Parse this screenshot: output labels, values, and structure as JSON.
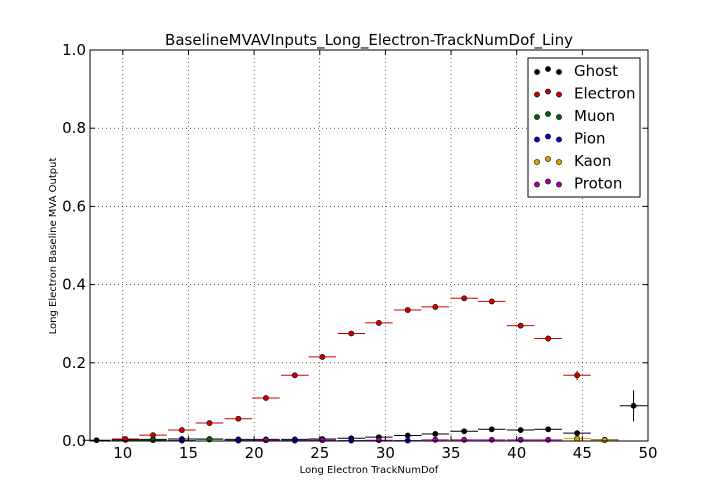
{
  "chart_data": {
    "type": "scatter",
    "title": "BaselineMVAVInputs_Long_Electron-TrackNumDof_Liny",
    "xlabel": "Long Electron TrackNumDof",
    "ylabel": "Long Electron Baseline MVA Output",
    "xlim": [
      7.5,
      50
    ],
    "ylim": [
      0,
      1.0
    ],
    "x_ticks": [
      "10",
      "15",
      "20",
      "25",
      "30",
      "35",
      "40",
      "45",
      "50"
    ],
    "y_ticks": [
      "0.0",
      "0.2",
      "0.4",
      "0.6",
      "0.8",
      "1.0"
    ],
    "grid": true,
    "legend_position": "top-right",
    "bin_half_width": 1.05,
    "series": [
      {
        "name": "Ghost",
        "color": "#000000",
        "points": [
          {
            "x": 8.0,
            "y": 0.002,
            "err": 0.001
          },
          {
            "x": 10.2,
            "y": 0.003,
            "err": 0.001
          },
          {
            "x": 12.3,
            "y": 0.004,
            "err": 0.001
          },
          {
            "x": 14.5,
            "y": 0.005,
            "err": 0.001
          },
          {
            "x": 16.6,
            "y": 0.005,
            "err": 0.001
          },
          {
            "x": 18.8,
            "y": 0.004,
            "err": 0.001
          },
          {
            "x": 20.9,
            "y": 0.004,
            "err": 0.001
          },
          {
            "x": 23.1,
            "y": 0.004,
            "err": 0.001
          },
          {
            "x": 25.2,
            "y": 0.005,
            "err": 0.001
          },
          {
            "x": 27.4,
            "y": 0.007,
            "err": 0.001
          },
          {
            "x": 29.5,
            "y": 0.01,
            "err": 0.002
          },
          {
            "x": 31.7,
            "y": 0.014,
            "err": 0.002
          },
          {
            "x": 33.8,
            "y": 0.018,
            "err": 0.002
          },
          {
            "x": 36.0,
            "y": 0.025,
            "err": 0.003
          },
          {
            "x": 38.1,
            "y": 0.03,
            "err": 0.003
          },
          {
            "x": 40.3,
            "y": 0.028,
            "err": 0.003
          },
          {
            "x": 42.4,
            "y": 0.03,
            "err": 0.004
          },
          {
            "x": 44.6,
            "y": 0.02,
            "err": 0.004
          },
          {
            "x": 46.7,
            "y": 0.003,
            "err": 0.002
          },
          {
            "x": 48.9,
            "y": 0.09,
            "err": 0.04
          }
        ]
      },
      {
        "name": "Electron",
        "color": "#cc0000",
        "points": [
          {
            "x": 10.2,
            "y": 0.005,
            "err": 0.002
          },
          {
            "x": 12.3,
            "y": 0.015,
            "err": 0.003
          },
          {
            "x": 14.5,
            "y": 0.028,
            "err": 0.003
          },
          {
            "x": 16.6,
            "y": 0.046,
            "err": 0.004
          },
          {
            "x": 18.8,
            "y": 0.057,
            "err": 0.004
          },
          {
            "x": 20.9,
            "y": 0.11,
            "err": 0.004
          },
          {
            "x": 23.1,
            "y": 0.168,
            "err": 0.004
          },
          {
            "x": 25.2,
            "y": 0.215,
            "err": 0.004
          },
          {
            "x": 27.4,
            "y": 0.275,
            "err": 0.004
          },
          {
            "x": 29.5,
            "y": 0.302,
            "err": 0.004
          },
          {
            "x": 31.7,
            "y": 0.335,
            "err": 0.004
          },
          {
            "x": 33.8,
            "y": 0.343,
            "err": 0.004
          },
          {
            "x": 36.0,
            "y": 0.365,
            "err": 0.004
          },
          {
            "x": 38.1,
            "y": 0.357,
            "err": 0.005
          },
          {
            "x": 40.3,
            "y": 0.295,
            "err": 0.006
          },
          {
            "x": 42.4,
            "y": 0.262,
            "err": 0.008
          },
          {
            "x": 44.6,
            "y": 0.168,
            "err": 0.012
          }
        ]
      },
      {
        "name": "Muon",
        "color": "#006400",
        "points": [
          {
            "x": 12.3,
            "y": 0.002,
            "err": 0.001
          },
          {
            "x": 16.6,
            "y": 0.004,
            "err": 0.001
          },
          {
            "x": 20.9,
            "y": 0.002,
            "err": 0.001
          }
        ]
      },
      {
        "name": "Pion",
        "color": "#0000cc",
        "points": [
          {
            "x": 14.5,
            "y": 0.001,
            "err": 0.0005
          },
          {
            "x": 18.8,
            "y": 0.001,
            "err": 0.0005
          },
          {
            "x": 23.1,
            "y": 0.001,
            "err": 0.0005
          },
          {
            "x": 27.4,
            "y": 0.001,
            "err": 0.0005
          },
          {
            "x": 31.7,
            "y": 0.001,
            "err": 0.0005
          }
        ]
      },
      {
        "name": "Kaon",
        "color": "#e0a000",
        "points": [
          {
            "x": 44.6,
            "y": 0.006,
            "err": 0.002
          },
          {
            "x": 46.7,
            "y": 0.002,
            "err": 0.001
          }
        ]
      },
      {
        "name": "Proton",
        "color": "#aa00aa",
        "points": [
          {
            "x": 20.9,
            "y": 0.002,
            "err": 0.001
          },
          {
            "x": 25.2,
            "y": 0.002,
            "err": 0.001
          },
          {
            "x": 29.5,
            "y": 0.002,
            "err": 0.001
          },
          {
            "x": 33.8,
            "y": 0.003,
            "err": 0.001
          },
          {
            "x": 36.0,
            "y": 0.003,
            "err": 0.001
          },
          {
            "x": 38.1,
            "y": 0.003,
            "err": 0.001
          },
          {
            "x": 40.3,
            "y": 0.003,
            "err": 0.001
          },
          {
            "x": 42.4,
            "y": 0.003,
            "err": 0.001
          }
        ]
      }
    ]
  }
}
